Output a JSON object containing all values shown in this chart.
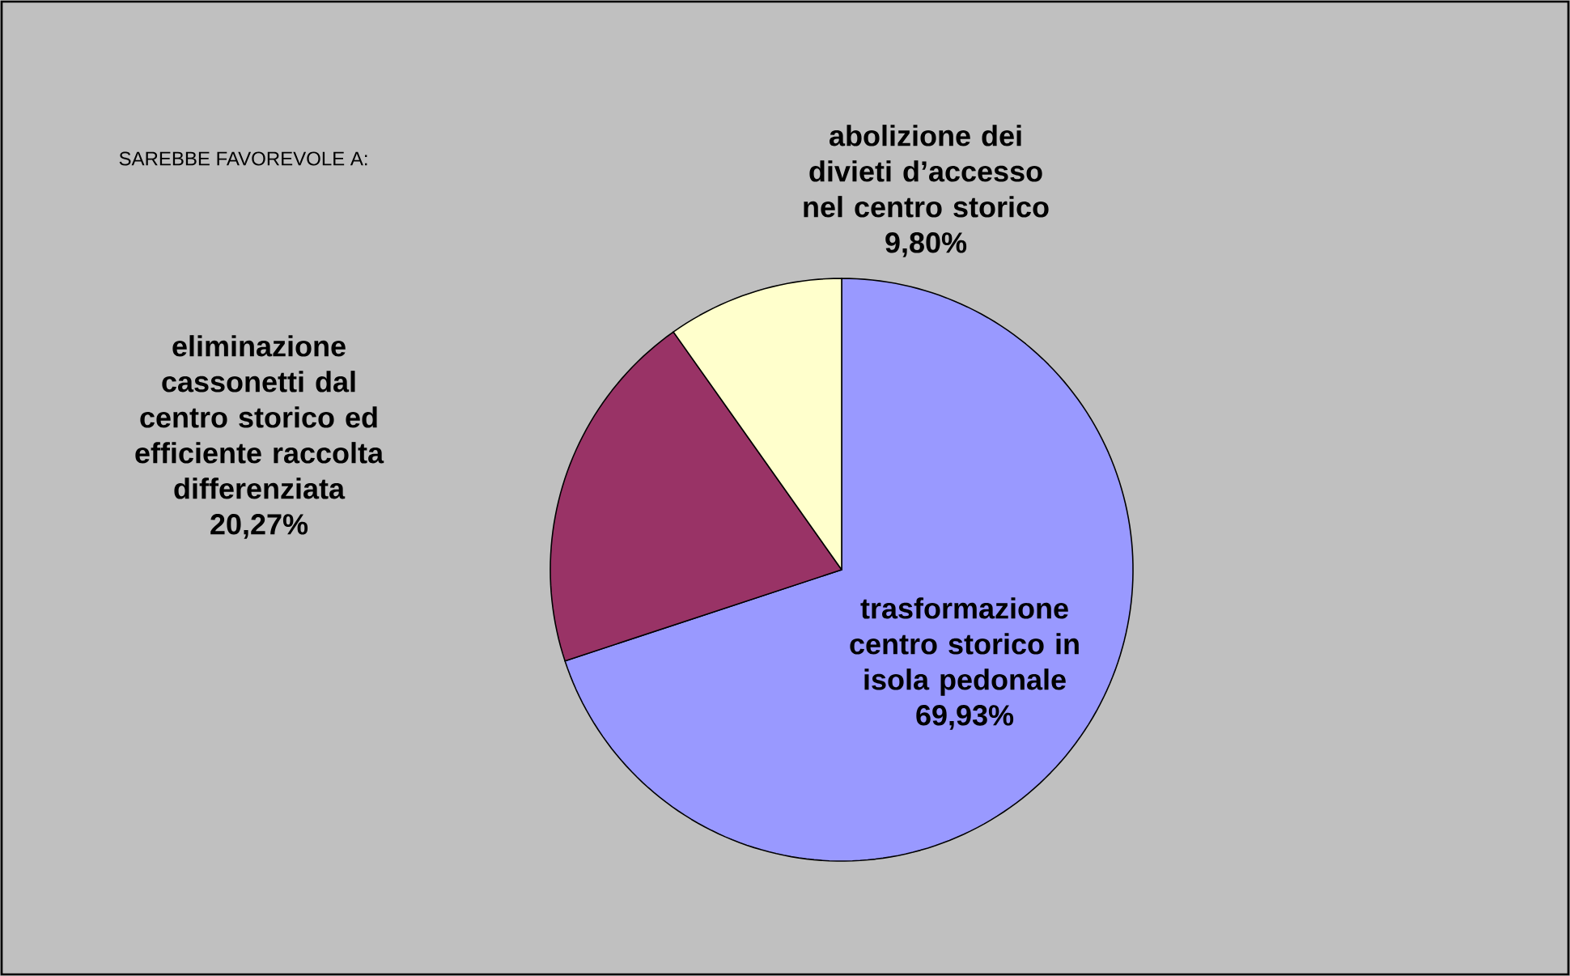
{
  "chart_data": {
    "type": "pie",
    "title": "SAREBBE FAVOREVOLE A:",
    "categories": [
      "trasformazione centro storico in isola pedonale",
      "eliminazione cassonetti dal centro storico ed efficiente raccolta differenziata",
      "abolizione dei divieti d’accesso nel centro storico"
    ],
    "values": [
      69.93,
      20.27,
      9.8
    ],
    "value_labels": [
      "69,93%",
      "20,27%",
      "9,80%"
    ],
    "colors": [
      "#9999ff",
      "#993366",
      "#ffffcc"
    ]
  }
}
